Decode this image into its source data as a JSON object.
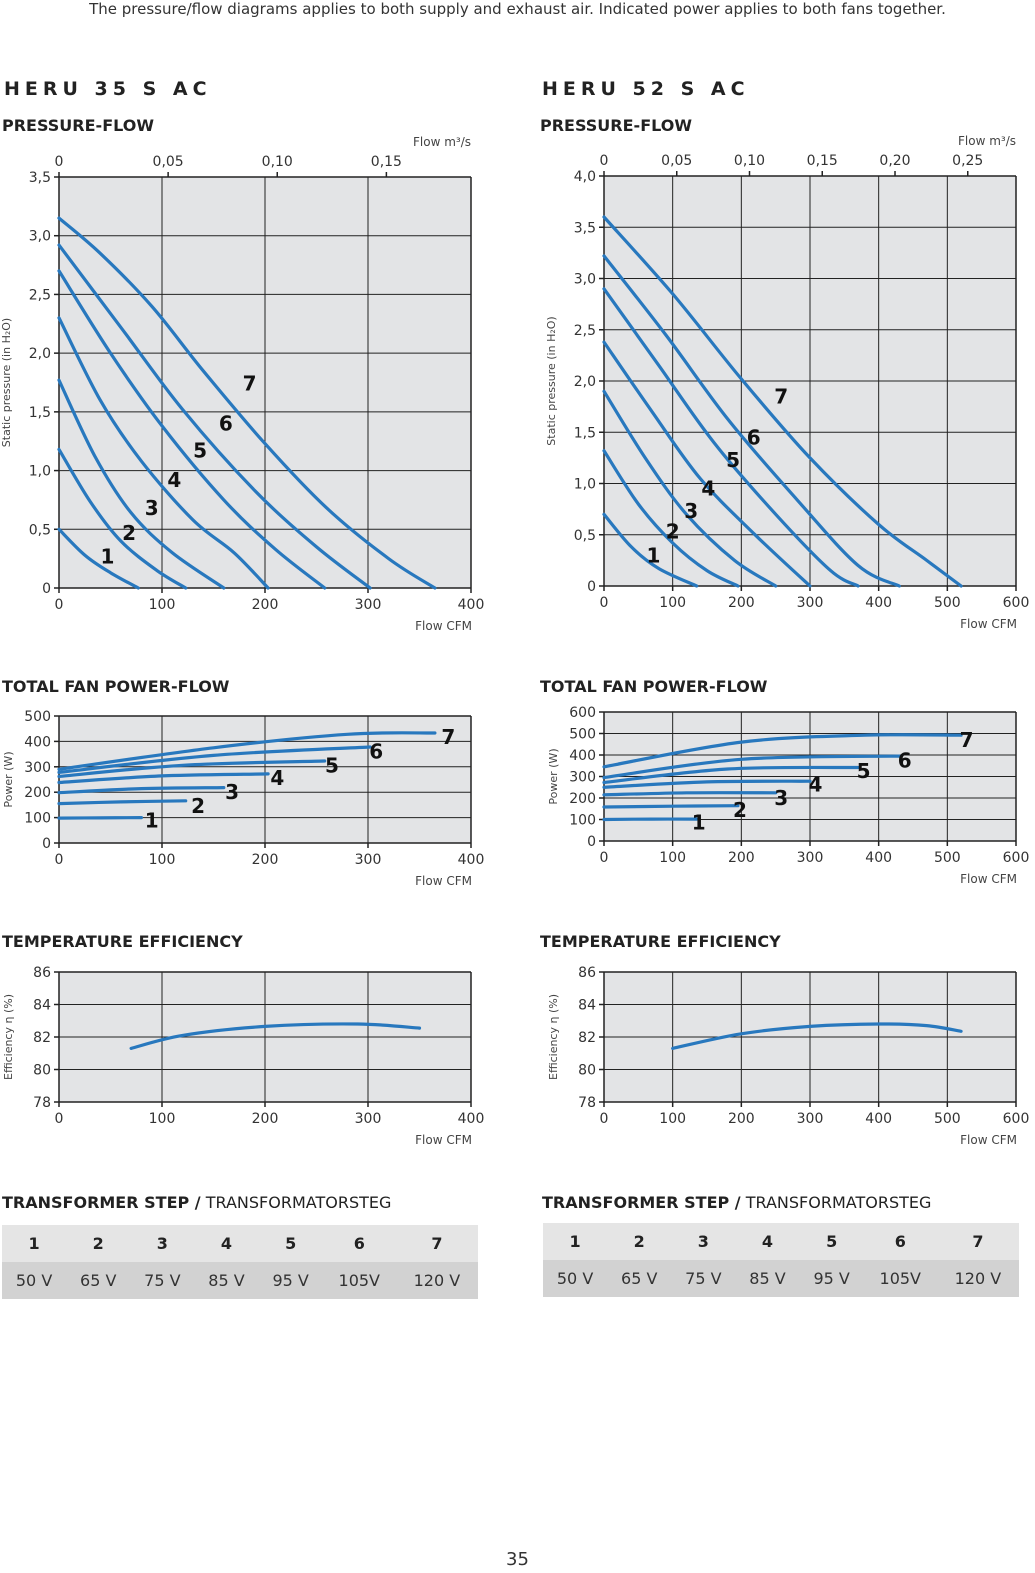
{
  "intro": "The pressure/flow diagrams applies to both supply and exhaust air. Indicated power applies to both fans together.",
  "page_number": "35",
  "models": [
    {
      "name": "HERU 35 S AC"
    },
    {
      "name": "HERU 52 S AC"
    }
  ],
  "sections": {
    "pressure": "PRESSURE-FLOW",
    "power": "TOTAL FAN POWER-FLOW",
    "efficiency": "TEMPERATURE EFFICIENCY",
    "transformer_bold": "TRANSFORMER STEP /",
    "transformer_regular": " TRANSFORMATORSTEG"
  },
  "transformer_table": [
    {
      "steps": [
        "1",
        "2",
        "3",
        "4",
        "5",
        "6",
        "7"
      ],
      "voltages": [
        "50 V",
        "65 V",
        "75 V",
        "85 V",
        "95 V",
        "105V",
        "120 V"
      ]
    },
    {
      "steps": [
        "1",
        "2",
        "3",
        "4",
        "5",
        "6",
        "7"
      ],
      "voltages": [
        "50 V",
        "65 V",
        "75 V",
        "85 V",
        "95 V",
        "105V",
        "120 V"
      ]
    }
  ],
  "colors": {
    "curve": "#2878be",
    "plot_bg": "#e3e4e6",
    "grid": "#222222"
  },
  "chart_data": [
    {
      "id": "c35p",
      "type": "line",
      "xlabel": "Flow CFM",
      "ylabel": "Static pressure (in H₂O)",
      "x2label": "Flow m³/s",
      "xlim": [
        0,
        400
      ],
      "ylim": [
        0,
        3.5
      ],
      "xticks": [
        "0",
        "100",
        "200",
        "300",
        "400"
      ],
      "xtick_values": [
        0,
        100,
        200,
        300,
        400
      ],
      "yticks": [
        "0",
        "0,5",
        "1,0",
        "1,5",
        "2,0",
        "2,5",
        "3,0",
        "3,5"
      ],
      "ytick_values": [
        0,
        0.5,
        1,
        1.5,
        2,
        2.5,
        3,
        3.5
      ],
      "x2ticks": [
        "0",
        "0,05",
        "0,10",
        "0,15"
      ],
      "x2tick_values": [
        0,
        0.05,
        0.1,
        0.15
      ],
      "x2_factor": 2119,
      "series": [
        {
          "name": "1",
          "points": [
            [
              0,
              0.5
            ],
            [
              25,
              0.28
            ],
            [
              50,
              0.13
            ],
            [
              77,
              0
            ]
          ],
          "label_xy": [
            47,
            0.27
          ]
        },
        {
          "name": "2",
          "points": [
            [
              0,
              1.18
            ],
            [
              30,
              0.74
            ],
            [
              60,
              0.4
            ],
            [
              95,
              0.15
            ],
            [
              123,
              0
            ]
          ],
          "label_xy": [
            68,
            0.47
          ]
        },
        {
          "name": "3",
          "points": [
            [
              0,
              1.77
            ],
            [
              35,
              1.12
            ],
            [
              70,
              0.64
            ],
            [
              110,
              0.3
            ],
            [
              160,
              0
            ]
          ],
          "label_xy": [
            90,
            0.68
          ]
        },
        {
          "name": "4",
          "points": [
            [
              0,
              2.3
            ],
            [
              40,
              1.6
            ],
            [
              80,
              1.08
            ],
            [
              130,
              0.58
            ],
            [
              170,
              0.3
            ],
            [
              203,
              0
            ]
          ],
          "label_xy": [
            112,
            0.92
          ]
        },
        {
          "name": "5",
          "points": [
            [
              0,
              2.7
            ],
            [
              50,
              2.0
            ],
            [
              100,
              1.38
            ],
            [
              160,
              0.75
            ],
            [
              210,
              0.33
            ],
            [
              258,
              0
            ]
          ],
          "label_xy": [
            137,
            1.17
          ]
        },
        {
          "name": "6",
          "points": [
            [
              0,
              2.92
            ],
            [
              60,
              2.22
            ],
            [
              120,
              1.52
            ],
            [
              190,
              0.83
            ],
            [
              250,
              0.35
            ],
            [
              302,
              0
            ]
          ],
          "label_xy": [
            162,
            1.4
          ]
        },
        {
          "name": "7",
          "points": [
            [
              0,
              3.15
            ],
            [
              40,
              2.85
            ],
            [
              90,
              2.4
            ],
            [
              140,
              1.85
            ],
            [
              200,
              1.23
            ],
            [
              260,
              0.68
            ],
            [
              320,
              0.25
            ],
            [
              365,
              0
            ]
          ],
          "label_xy": [
            185,
            1.74
          ]
        }
      ]
    },
    {
      "id": "c52p",
      "type": "line",
      "xlabel": "Flow CFM",
      "ylabel": "Static pressure (in H₂O)",
      "x2label": "Flow m³/s",
      "xlim": [
        0,
        600
      ],
      "ylim": [
        0,
        4.0
      ],
      "xticks": [
        "0",
        "100",
        "200",
        "300",
        "400",
        "500",
        "600"
      ],
      "xtick_values": [
        0,
        100,
        200,
        300,
        400,
        500,
        600
      ],
      "yticks": [
        "0",
        "0,5",
        "1,0",
        "1,5",
        "2,0",
        "2,5",
        "3,0",
        "3,5",
        "4,0"
      ],
      "ytick_values": [
        0,
        0.5,
        1,
        1.5,
        2,
        2.5,
        3,
        3.5,
        4
      ],
      "x2ticks": [
        "0",
        "0,05",
        "0,10",
        "0,15",
        "0,20",
        "0,25"
      ],
      "x2tick_values": [
        0,
        0.05,
        0.1,
        0.15,
        0.2,
        0.25
      ],
      "x2_factor": 2119,
      "series": [
        {
          "name": "1",
          "points": [
            [
              0,
              0.7
            ],
            [
              40,
              0.38
            ],
            [
              80,
              0.17
            ],
            [
              135,
              0
            ]
          ],
          "label_xy": [
            72,
            0.3
          ]
        },
        {
          "name": "2",
          "points": [
            [
              0,
              1.32
            ],
            [
              50,
              0.8
            ],
            [
              100,
              0.42
            ],
            [
              150,
              0.15
            ],
            [
              195,
              0
            ]
          ],
          "label_xy": [
            100,
            0.53
          ]
        },
        {
          "name": "3",
          "points": [
            [
              0,
              1.9
            ],
            [
              60,
              1.25
            ],
            [
              120,
              0.7
            ],
            [
              190,
              0.25
            ],
            [
              250,
              0
            ]
          ],
          "label_xy": [
            127,
            0.73
          ]
        },
        {
          "name": "4",
          "points": [
            [
              0,
              2.38
            ],
            [
              70,
              1.7
            ],
            [
              140,
              1.05
            ],
            [
              220,
              0.5
            ],
            [
              300,
              0
            ]
          ],
          "label_xy": [
            152,
            0.95
          ]
        },
        {
          "name": "5",
          "points": [
            [
              0,
              2.9
            ],
            [
              80,
              2.15
            ],
            [
              160,
              1.4
            ],
            [
              250,
              0.7
            ],
            [
              330,
              0.15
            ],
            [
              370,
              0
            ]
          ],
          "label_xy": [
            188,
            1.23
          ]
        },
        {
          "name": "6",
          "points": [
            [
              0,
              3.22
            ],
            [
              90,
              2.45
            ],
            [
              180,
              1.63
            ],
            [
              280,
              0.85
            ],
            [
              370,
              0.2
            ],
            [
              430,
              0
            ]
          ],
          "label_xy": [
            218,
            1.45
          ]
        },
        {
          "name": "7",
          "points": [
            [
              0,
              3.6
            ],
            [
              100,
              2.85
            ],
            [
              200,
              2.02
            ],
            [
              300,
              1.25
            ],
            [
              400,
              0.6
            ],
            [
              470,
              0.25
            ],
            [
              520,
              0
            ]
          ],
          "label_xy": [
            258,
            1.85
          ]
        }
      ]
    },
    {
      "id": "c35w",
      "type": "line",
      "xlabel": "Flow CFM",
      "ylabel": "Power (W)",
      "xlim": [
        0,
        400
      ],
      "ylim": [
        0,
        500
      ],
      "xticks": [
        "0",
        "100",
        "200",
        "300",
        "400"
      ],
      "xtick_values": [
        0,
        100,
        200,
        300,
        400
      ],
      "yticks": [
        "0",
        "100",
        "200",
        "300",
        "400",
        "500"
      ],
      "ytick_values": [
        0,
        100,
        200,
        300,
        400,
        500
      ],
      "series": [
        {
          "name": "1",
          "points": [
            [
              0,
              98
            ],
            [
              40,
              99
            ],
            [
              80,
              100
            ]
          ],
          "label_xy": [
            90,
            88
          ]
        },
        {
          "name": "2",
          "points": [
            [
              0,
              155
            ],
            [
              60,
              162
            ],
            [
              123,
              166
            ]
          ],
          "label_xy": [
            135,
            145
          ]
        },
        {
          "name": "3",
          "points": [
            [
              0,
              198
            ],
            [
              80,
              214
            ],
            [
              160,
              218
            ]
          ],
          "label_xy": [
            168,
            200
          ]
        },
        {
          "name": "4",
          "points": [
            [
              0,
              238
            ],
            [
              100,
              264
            ],
            [
              203,
              272
            ]
          ],
          "label_xy": [
            212,
            255
          ]
        },
        {
          "name": "5",
          "points": [
            [
              0,
              262
            ],
            [
              120,
              306
            ],
            [
              258,
              323
            ]
          ],
          "label_xy": [
            265,
            305
          ]
        },
        {
          "name": "6",
          "points": [
            [
              0,
              278
            ],
            [
              150,
              345
            ],
            [
              302,
              378
            ]
          ],
          "label_xy": [
            308,
            360
          ]
        },
        {
          "name": "7",
          "points": [
            [
              0,
              290
            ],
            [
              150,
              375
            ],
            [
              280,
              428
            ],
            [
              365,
              433
            ]
          ],
          "label_xy": [
            378,
            418
          ]
        }
      ]
    },
    {
      "id": "c52w",
      "type": "line",
      "xlabel": "Flow CFM",
      "ylabel": "Power (W)",
      "xlim": [
        0,
        600
      ],
      "ylim": [
        0,
        600
      ],
      "xticks": [
        "0",
        "100",
        "200",
        "300",
        "400",
        "500",
        "600"
      ],
      "xtick_values": [
        0,
        100,
        200,
        300,
        400,
        500,
        600
      ],
      "yticks": [
        "0",
        "100",
        "200",
        "300",
        "400",
        "500",
        "600"
      ],
      "ytick_values": [
        0,
        100,
        200,
        300,
        400,
        500,
        600
      ],
      "series": [
        {
          "name": "1",
          "points": [
            [
              0,
              100
            ],
            [
              70,
              102
            ],
            [
              135,
              102
            ]
          ],
          "label_xy": [
            138,
            85
          ]
        },
        {
          "name": "2",
          "points": [
            [
              0,
              158
            ],
            [
              100,
              162
            ],
            [
              195,
              164
            ]
          ],
          "label_xy": [
            198,
            145
          ]
        },
        {
          "name": "3",
          "points": [
            [
              0,
              215
            ],
            [
              120,
              224
            ],
            [
              250,
              224
            ]
          ],
          "label_xy": [
            258,
            200
          ]
        },
        {
          "name": "4",
          "points": [
            [
              0,
              250
            ],
            [
              150,
              275
            ],
            [
              300,
              278
            ]
          ],
          "label_xy": [
            308,
            262
          ]
        },
        {
          "name": "5",
          "points": [
            [
              0,
              272
            ],
            [
              180,
              335
            ],
            [
              370,
              342
            ]
          ],
          "label_xy": [
            378,
            325
          ]
        },
        {
          "name": "6",
          "points": [
            [
              0,
              295
            ],
            [
              200,
              380
            ],
            [
              430,
              395
            ]
          ],
          "label_xy": [
            438,
            375
          ]
        },
        {
          "name": "7",
          "points": [
            [
              0,
              345
            ],
            [
              200,
              460
            ],
            [
              380,
              492
            ],
            [
              520,
              492
            ]
          ],
          "label_xy": [
            528,
            470
          ]
        }
      ]
    },
    {
      "id": "c35e",
      "type": "line",
      "xlabel": "Flow CFM",
      "ylabel": "Efficiency η (%)",
      "xlim": [
        0,
        400
      ],
      "ylim": [
        78,
        86
      ],
      "xticks": [
        "0",
        "100",
        "200",
        "300",
        "400"
      ],
      "xtick_values": [
        0,
        100,
        200,
        300,
        400
      ],
      "yticks": [
        "78",
        "80",
        "82",
        "84",
        "86"
      ],
      "ytick_values": [
        78,
        80,
        82,
        84,
        86
      ],
      "series": [
        {
          "points": [
            [
              70,
              81.3
            ],
            [
              120,
              82.1
            ],
            [
              200,
              82.65
            ],
            [
              290,
              82.8
            ],
            [
              350,
              82.55
            ]
          ]
        }
      ]
    },
    {
      "id": "c52e",
      "type": "line",
      "xlabel": "Flow CFM",
      "ylabel": "Efficiency η (%)",
      "xlim": [
        0,
        600
      ],
      "ylim": [
        78,
        86
      ],
      "xticks": [
        "0",
        "100",
        "200",
        "300",
        "400",
        "500",
        "600"
      ],
      "xtick_values": [
        0,
        100,
        200,
        300,
        400,
        500,
        600
      ],
      "yticks": [
        "78",
        "80",
        "82",
        "84",
        "86"
      ],
      "ytick_values": [
        78,
        80,
        82,
        84,
        86
      ],
      "series": [
        {
          "points": [
            [
              100,
              81.3
            ],
            [
              200,
              82.2
            ],
            [
              300,
              82.65
            ],
            [
              400,
              82.8
            ],
            [
              470,
              82.7
            ],
            [
              520,
              82.35
            ]
          ]
        }
      ]
    }
  ]
}
